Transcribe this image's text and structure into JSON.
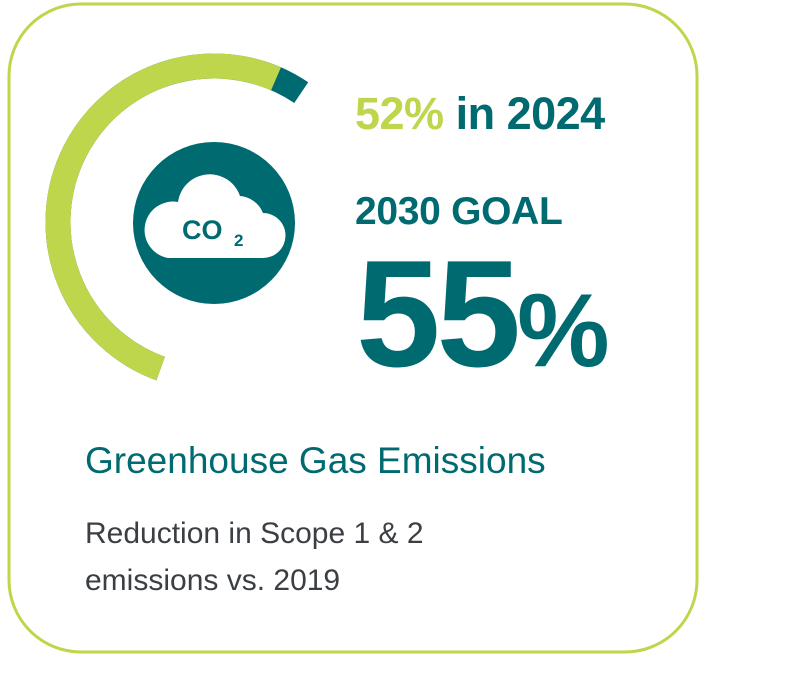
{
  "colors": {
    "accent": "#bdd64b",
    "primary": "#006a71",
    "text": "#3b3f44"
  },
  "gauge": {
    "current_percent": 52,
    "goal_percent": 55
  },
  "icon": {
    "name": "co2-cloud-icon",
    "label": "CO",
    "subscript": "2"
  },
  "headline": {
    "current_value": "52%",
    "rest": "in 2024"
  },
  "goal": {
    "label": "2030 GOAL",
    "value": "55",
    "unit": "%"
  },
  "title": "Greenhouse Gas Emissions",
  "subtitle": "Reduction in Scope 1 & 2 emissions vs. 2019"
}
